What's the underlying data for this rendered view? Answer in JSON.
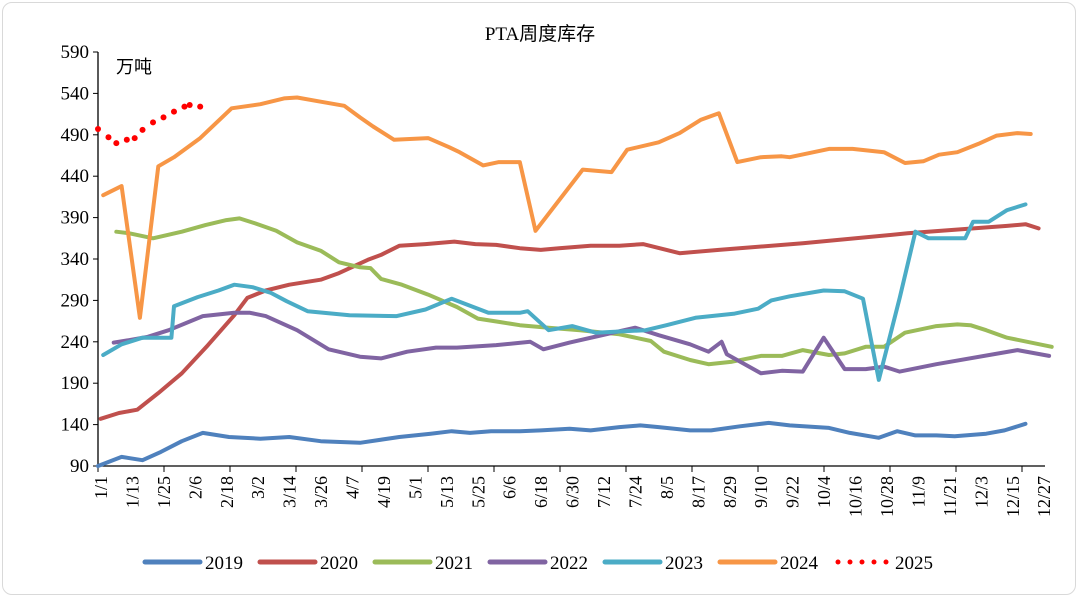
{
  "chart_data": {
    "type": "line",
    "title": "PTA周度库存",
    "unit_label": "万吨",
    "ylim": [
      90,
      590
    ],
    "yticks": [
      90,
      140,
      190,
      240,
      290,
      340,
      390,
      440,
      490,
      540,
      590
    ],
    "xticks": [
      "1/1",
      "1/13",
      "1/25",
      "2/6",
      "2/18",
      "3/2",
      "3/14",
      "3/26",
      "4/7",
      "4/19",
      "5/1",
      "5/13",
      "5/25",
      "6/6",
      "6/18",
      "6/30",
      "7/12",
      "7/24",
      "8/5",
      "8/17",
      "8/29",
      "9/10",
      "9/22",
      "10/4",
      "10/16",
      "10/28",
      "11/9",
      "11/21",
      "12/3",
      "12/15",
      "12/27"
    ],
    "grid": false,
    "legend": "bottom",
    "series": [
      {
        "name": "2019",
        "color": "#4f81bd",
        "style": "solid",
        "points": [
          [
            "1/1",
            90
          ],
          [
            "1/10",
            101
          ],
          [
            "1/18",
            97
          ],
          [
            "1/25",
            107
          ],
          [
            "2/2",
            120
          ],
          [
            "2/10",
            130
          ],
          [
            "2/20",
            125
          ],
          [
            "3/4",
            123
          ],
          [
            "3/15",
            125
          ],
          [
            "3/27",
            120
          ],
          [
            "4/11",
            118
          ],
          [
            "4/26",
            125
          ],
          [
            "5/8",
            129
          ],
          [
            "5/16",
            132
          ],
          [
            "5/23",
            130
          ],
          [
            "5/31",
            132
          ],
          [
            "6/11",
            132
          ],
          [
            "6/19",
            133
          ],
          [
            "6/30",
            135
          ],
          [
            "7/8",
            133
          ],
          [
            "7/19",
            137
          ],
          [
            "7/27",
            139
          ],
          [
            "8/3",
            137
          ],
          [
            "8/15",
            133
          ],
          [
            "8/23",
            133
          ],
          [
            "9/3",
            138
          ],
          [
            "9/14",
            142
          ],
          [
            "9/22",
            139
          ],
          [
            "10/7",
            136
          ],
          [
            "10/15",
            130
          ],
          [
            "10/26",
            124
          ],
          [
            "11/2",
            132
          ],
          [
            "11/9",
            127
          ],
          [
            "11/17",
            127
          ],
          [
            "11/24",
            126
          ],
          [
            "12/6",
            129
          ],
          [
            "12/13",
            133
          ],
          [
            "12/21",
            141
          ]
        ]
      },
      {
        "name": "2020",
        "color": "#c0504d",
        "style": "solid",
        "points": [
          [
            "1/2",
            147
          ],
          [
            "1/9",
            154
          ],
          [
            "1/16",
            158
          ],
          [
            "1/24",
            178
          ],
          [
            "2/2",
            202
          ],
          [
            "2/12",
            236
          ],
          [
            "2/22",
            272
          ],
          [
            "2/27",
            293
          ],
          [
            "3/6",
            302
          ],
          [
            "3/15",
            309
          ],
          [
            "3/27",
            315
          ],
          [
            "4/3",
            323
          ],
          [
            "4/14",
            339
          ],
          [
            "4/19",
            345
          ],
          [
            "4/26",
            356
          ],
          [
            "5/6",
            358
          ],
          [
            "5/17",
            361
          ],
          [
            "5/25",
            358
          ],
          [
            "6/2",
            357
          ],
          [
            "6/11",
            353
          ],
          [
            "6/19",
            351
          ],
          [
            "6/26",
            353
          ],
          [
            "7/8",
            356
          ],
          [
            "7/19",
            356
          ],
          [
            "7/28",
            358
          ],
          [
            "8/11",
            347
          ],
          [
            "8/26",
            351
          ],
          [
            "9/27",
            359
          ],
          [
            "11/6",
            371
          ],
          [
            "12/14",
            380
          ],
          [
            "12/21",
            382
          ],
          [
            "12/26",
            377
          ]
        ]
      },
      {
        "name": "2021",
        "color": "#9bbb59",
        "style": "solid",
        "points": [
          [
            "1/8",
            373
          ],
          [
            "1/13",
            371
          ],
          [
            "1/22",
            365
          ],
          [
            "2/2",
            373
          ],
          [
            "2/11",
            381
          ],
          [
            "2/19",
            387
          ],
          [
            "2/24",
            389
          ],
          [
            "3/2",
            383
          ],
          [
            "3/10",
            374
          ],
          [
            "3/18",
            360
          ],
          [
            "3/27",
            350
          ],
          [
            "4/3",
            336
          ],
          [
            "4/11",
            330
          ],
          [
            "4/15",
            329
          ],
          [
            "4/19",
            316
          ],
          [
            "4/27",
            309
          ],
          [
            "5/7",
            297
          ],
          [
            "5/18",
            282
          ],
          [
            "5/26",
            268
          ],
          [
            "6/3",
            264
          ],
          [
            "6/11",
            260
          ],
          [
            "6/22",
            257
          ],
          [
            "7/4",
            254
          ],
          [
            "7/19",
            249
          ],
          [
            "7/31",
            241
          ],
          [
            "8/5",
            228
          ],
          [
            "8/15",
            218
          ],
          [
            "8/22",
            213
          ],
          [
            "8/31",
            216
          ],
          [
            "9/11",
            223
          ],
          [
            "9/19",
            223
          ],
          [
            "9/27",
            230
          ],
          [
            "10/7",
            224
          ],
          [
            "10/13",
            226
          ],
          [
            "10/21",
            234
          ],
          [
            "10/28",
            234
          ],
          [
            "11/5",
            251
          ],
          [
            "11/17",
            259
          ],
          [
            "11/25",
            261
          ],
          [
            "11/30",
            260
          ],
          [
            "12/6",
            254
          ],
          [
            "12/14",
            245
          ],
          [
            "12/31",
            234
          ]
        ]
      },
      {
        "name": "2022",
        "color": "#8064a2",
        "style": "solid",
        "points": [
          [
            "1/7",
            239
          ],
          [
            "1/13",
            242
          ],
          [
            "1/20",
            246
          ],
          [
            "1/28",
            254
          ],
          [
            "2/10",
            271
          ],
          [
            "2/22",
            275
          ],
          [
            "2/28",
            275
          ],
          [
            "3/6",
            271
          ],
          [
            "3/18",
            254
          ],
          [
            "3/30",
            231
          ],
          [
            "4/11",
            222
          ],
          [
            "4/19",
            220
          ],
          [
            "4/29",
            228
          ],
          [
            "5/10",
            233
          ],
          [
            "5/18",
            233
          ],
          [
            "6/2",
            236
          ],
          [
            "6/15",
            240
          ],
          [
            "6/20",
            231
          ],
          [
            "6/30",
            239
          ],
          [
            "7/11",
            247
          ],
          [
            "7/25",
            257
          ],
          [
            "8/3",
            248
          ],
          [
            "8/15",
            237
          ],
          [
            "8/22",
            228
          ],
          [
            "8/27",
            240
          ],
          [
            "8/29",
            225
          ],
          [
            "9/11",
            202
          ],
          [
            "9/19",
            205
          ],
          [
            "9/27",
            204
          ],
          [
            "10/5",
            245
          ],
          [
            "10/13",
            207
          ],
          [
            "10/21",
            207
          ],
          [
            "10/28",
            210
          ],
          [
            "11/3",
            204
          ],
          [
            "11/17",
            213
          ],
          [
            "12/18",
            230
          ],
          [
            "12/30",
            223
          ]
        ]
      },
      {
        "name": "2023",
        "color": "#4bacc6",
        "style": "solid",
        "points": [
          [
            "1/3",
            224
          ],
          [
            "1/10",
            237
          ],
          [
            "1/18",
            245
          ],
          [
            "1/29",
            245
          ],
          [
            "1/30",
            283
          ],
          [
            "2/8",
            294
          ],
          [
            "2/16",
            302
          ],
          [
            "2/22",
            309
          ],
          [
            "3/1",
            306
          ],
          [
            "3/8",
            299
          ],
          [
            "3/14",
            289
          ],
          [
            "3/22",
            277
          ],
          [
            "4/7",
            272
          ],
          [
            "4/25",
            271
          ],
          [
            "5/6",
            279
          ],
          [
            "5/16",
            292
          ],
          [
            "5/30",
            275
          ],
          [
            "6/11",
            275
          ],
          [
            "6/14",
            277
          ],
          [
            "6/22",
            254
          ],
          [
            "7/1",
            259
          ],
          [
            "7/10",
            251
          ],
          [
            "7/29",
            254
          ],
          [
            "8/6",
            260
          ],
          [
            "8/17",
            269
          ],
          [
            "9/1",
            274
          ],
          [
            "9/10",
            280
          ],
          [
            "9/15",
            290
          ],
          [
            "9/22",
            295
          ],
          [
            "10/5",
            302
          ],
          [
            "10/13",
            301
          ],
          [
            "10/20",
            292
          ],
          [
            "10/26",
            194
          ],
          [
            "11/3",
            293
          ],
          [
            "11/9",
            373
          ],
          [
            "11/14",
            365
          ],
          [
            "11/28",
            365
          ],
          [
            "12/1",
            385
          ],
          [
            "12/7",
            385
          ],
          [
            "12/14",
            399
          ],
          [
            "12/21",
            406
          ]
        ]
      },
      {
        "name": "2024",
        "color": "#f79646",
        "style": "solid",
        "points": [
          [
            "1/3",
            417
          ],
          [
            "1/10",
            428
          ],
          [
            "1/17",
            269
          ],
          [
            "1/24",
            452
          ],
          [
            "1/30",
            463
          ],
          [
            "2/9",
            486
          ],
          [
            "2/21",
            522
          ],
          [
            "3/4",
            527
          ],
          [
            "3/13",
            534
          ],
          [
            "3/18",
            535
          ],
          [
            "3/27",
            530
          ],
          [
            "4/5",
            525
          ],
          [
            "4/11",
            511
          ],
          [
            "4/16",
            500
          ],
          [
            "4/24",
            484
          ],
          [
            "5/7",
            486
          ],
          [
            "5/15",
            475
          ],
          [
            "5/19",
            469
          ],
          [
            "5/28",
            453
          ],
          [
            "6/3",
            457
          ],
          [
            "6/11",
            457
          ],
          [
            "6/17",
            374
          ],
          [
            "7/5",
            448
          ],
          [
            "7/16",
            445
          ],
          [
            "7/22",
            472
          ],
          [
            "8/3",
            481
          ],
          [
            "8/11",
            492
          ],
          [
            "8/19",
            508
          ],
          [
            "8/26",
            516
          ],
          [
            "9/2",
            457
          ],
          [
            "9/11",
            463
          ],
          [
            "9/19",
            464
          ],
          [
            "9/22",
            463
          ],
          [
            "10/7",
            473
          ],
          [
            "10/16",
            473
          ],
          [
            "10/28",
            469
          ],
          [
            "11/5",
            456
          ],
          [
            "11/12",
            458
          ],
          [
            "11/18",
            466
          ],
          [
            "11/25",
            469
          ],
          [
            "12/3",
            479
          ],
          [
            "12/10",
            489
          ],
          [
            "12/18",
            492
          ],
          [
            "12/23",
            491
          ]
        ]
      },
      {
        "name": "2025",
        "color": "#ff0000",
        "style": "dotted",
        "points": [
          [
            "1/1",
            497
          ],
          [
            "1/5",
            487
          ],
          [
            "1/8",
            480
          ],
          [
            "1/12",
            484
          ],
          [
            "1/15",
            486
          ],
          [
            "1/18",
            496
          ],
          [
            "1/22",
            505
          ],
          [
            "1/26",
            511
          ],
          [
            "1/30",
            518
          ],
          [
            "2/3",
            524
          ],
          [
            "2/5",
            526
          ],
          [
            "2/9",
            524
          ]
        ]
      }
    ]
  }
}
